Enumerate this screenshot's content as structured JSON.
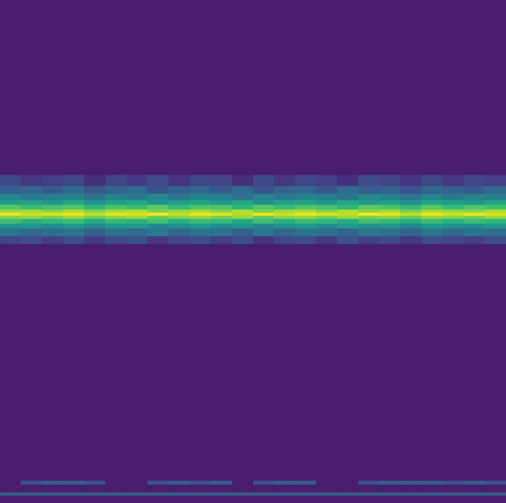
{
  "chart_data": {
    "type": "heatmap",
    "color": "viridis",
    "tick_labels": false,
    "xlim": [
      0,
      24
    ],
    "ylim": [
      0,
      640
    ],
    "zlim": [
      0,
      1
    ],
    "x": [
      0,
      1,
      2,
      3,
      4,
      5,
      6,
      7,
      8,
      9,
      10,
      11,
      12,
      13,
      14,
      15,
      16,
      17,
      18,
      19,
      20,
      21,
      22,
      23,
      24
    ],
    "y": [
      0,
      10,
      14,
      24,
      29,
      330,
      340,
      350,
      356,
      362,
      366,
      370,
      374,
      380,
      386,
      394,
      404,
      418,
      640
    ],
    "values": [
      [
        0.08,
        0.08,
        0.08,
        0.08,
        0.08,
        0.08,
        0.08,
        0.08,
        0.08,
        0.08,
        0.08,
        0.08,
        0.08,
        0.08,
        0.08,
        0.08,
        0.08,
        0.08,
        0.08,
        0.08,
        0.08,
        0.08,
        0.08,
        0.08
      ],
      [
        0.3,
        0.3,
        0.3,
        0.3,
        0.3,
        0.3,
        0.3,
        0.3,
        0.3,
        0.3,
        0.3,
        0.3,
        0.3,
        0.3,
        0.3,
        0.3,
        0.3,
        0.3,
        0.3,
        0.3,
        0.3,
        0.3,
        0.3,
        0.3
      ],
      [
        0.08,
        0.08,
        0.08,
        0.08,
        0.08,
        0.08,
        0.08,
        0.08,
        0.08,
        0.08,
        0.08,
        0.08,
        0.08,
        0.08,
        0.08,
        0.08,
        0.08,
        0.08,
        0.08,
        0.08,
        0.08,
        0.08,
        0.08,
        0.08
      ],
      [
        0.08,
        0.25,
        0.3,
        0.3,
        0.25,
        0.08,
        0.08,
        0.25,
        0.3,
        0.25,
        0.3,
        0.08,
        0.25,
        0.3,
        0.3,
        0.08,
        0.08,
        0.25,
        0.3,
        0.3,
        0.3,
        0.25,
        0.3,
        0.25
      ],
      [
        0.08,
        0.08,
        0.08,
        0.08,
        0.08,
        0.08,
        0.08,
        0.08,
        0.08,
        0.08,
        0.08,
        0.08,
        0.08,
        0.08,
        0.08,
        0.08,
        0.08,
        0.08,
        0.08,
        0.08,
        0.08,
        0.08,
        0.08,
        0.08
      ],
      [
        0.2,
        0.23,
        0.18,
        0.24,
        0.17,
        0.22,
        0.25,
        0.16,
        0.21,
        0.23,
        0.18,
        0.24,
        0.15,
        0.22,
        0.23,
        0.17,
        0.25,
        0.19,
        0.22,
        0.16,
        0.23,
        0.21,
        0.18,
        0.24
      ],
      [
        0.39,
        0.33,
        0.36,
        0.38,
        0.31,
        0.37,
        0.34,
        0.4,
        0.32,
        0.38,
        0.37,
        0.3,
        0.39,
        0.33,
        0.38,
        0.36,
        0.31,
        0.4,
        0.37,
        0.32,
        0.39,
        0.33,
        0.38,
        0.35
      ],
      [
        0.5,
        0.53,
        0.48,
        0.54,
        0.47,
        0.52,
        0.55,
        0.46,
        0.51,
        0.53,
        0.48,
        0.54,
        0.45,
        0.52,
        0.53,
        0.47,
        0.55,
        0.49,
        0.52,
        0.46,
        0.53,
        0.51,
        0.48,
        0.54
      ],
      [
        0.69,
        0.63,
        0.66,
        0.68,
        0.61,
        0.67,
        0.64,
        0.7,
        0.62,
        0.68,
        0.67,
        0.6,
        0.69,
        0.63,
        0.68,
        0.66,
        0.61,
        0.7,
        0.67,
        0.62,
        0.69,
        0.63,
        0.68,
        0.65
      ],
      [
        0.8,
        0.83,
        0.78,
        0.84,
        0.77,
        0.82,
        0.85,
        0.76,
        0.81,
        0.83,
        0.78,
        0.84,
        0.75,
        0.82,
        0.83,
        0.77,
        0.85,
        0.79,
        0.82,
        0.76,
        0.83,
        0.81,
        0.78,
        0.84
      ],
      [
        0.98,
        0.92,
        0.95,
        0.97,
        0.9,
        0.96,
        0.93,
        0.99,
        0.91,
        0.97,
        0.96,
        0.89,
        0.98,
        0.92,
        0.97,
        0.95,
        0.9,
        0.99,
        0.96,
        0.91,
        0.98,
        0.92,
        0.97,
        0.94
      ],
      [
        0.84,
        0.87,
        0.82,
        0.88,
        0.81,
        0.86,
        0.89,
        0.8,
        0.85,
        0.87,
        0.82,
        0.88,
        0.79,
        0.86,
        0.87,
        0.81,
        0.89,
        0.83,
        0.86,
        0.8,
        0.87,
        0.85,
        0.82,
        0.88
      ],
      [
        0.74,
        0.68,
        0.71,
        0.73,
        0.66,
        0.72,
        0.69,
        0.75,
        0.67,
        0.73,
        0.72,
        0.65,
        0.74,
        0.68,
        0.73,
        0.71,
        0.66,
        0.75,
        0.72,
        0.67,
        0.74,
        0.68,
        0.73,
        0.7
      ],
      [
        0.55,
        0.58,
        0.53,
        0.59,
        0.52,
        0.57,
        0.6,
        0.51,
        0.56,
        0.58,
        0.53,
        0.59,
        0.5,
        0.57,
        0.58,
        0.52,
        0.6,
        0.54,
        0.57,
        0.51,
        0.58,
        0.56,
        0.53,
        0.59
      ],
      [
        0.46,
        0.4,
        0.43,
        0.45,
        0.38,
        0.44,
        0.41,
        0.47,
        0.39,
        0.45,
        0.44,
        0.37,
        0.46,
        0.4,
        0.45,
        0.43,
        0.38,
        0.47,
        0.44,
        0.39,
        0.46,
        0.4,
        0.45,
        0.42
      ],
      [
        0.3,
        0.33,
        0.28,
        0.34,
        0.27,
        0.32,
        0.35,
        0.26,
        0.31,
        0.33,
        0.28,
        0.34,
        0.25,
        0.32,
        0.33,
        0.27,
        0.35,
        0.29,
        0.32,
        0.26,
        0.33,
        0.31,
        0.28,
        0.34
      ],
      [
        0.22,
        0.16,
        0.19,
        0.21,
        0.14,
        0.2,
        0.17,
        0.23,
        0.15,
        0.21,
        0.2,
        0.13,
        0.22,
        0.16,
        0.21,
        0.19,
        0.14,
        0.23,
        0.2,
        0.15,
        0.22,
        0.16,
        0.21,
        0.18
      ],
      [
        0.08,
        0.08,
        0.08,
        0.08,
        0.08,
        0.08,
        0.08,
        0.08,
        0.08,
        0.08,
        0.08,
        0.08,
        0.08,
        0.08,
        0.08,
        0.08,
        0.08,
        0.08,
        0.08,
        0.08,
        0.08,
        0.08,
        0.08,
        0.08
      ]
    ]
  }
}
